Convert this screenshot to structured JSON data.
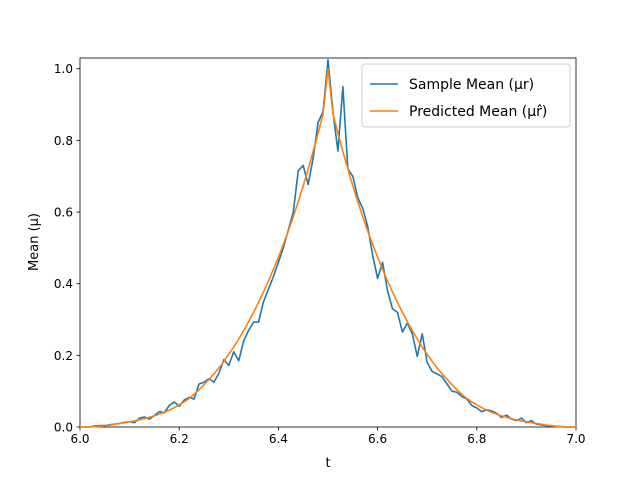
{
  "chart_data": {
    "type": "line",
    "xlabel": "t",
    "ylabel": "Mean (μ)",
    "xlim": [
      6.0,
      7.0
    ],
    "ylim": [
      0.0,
      1.03
    ],
    "xticks": [
      6.0,
      6.2,
      6.4,
      6.6,
      6.8,
      7.0
    ],
    "xtick_labels": [
      "6.0",
      "6.2",
      "6.4",
      "6.6",
      "6.8",
      "7.0"
    ],
    "yticks": [
      0.0,
      0.2,
      0.4,
      0.6,
      0.8,
      1.0
    ],
    "ytick_labels": [
      "0.0",
      "0.2",
      "0.4",
      "0.6",
      "0.8",
      "1.0"
    ],
    "grid": false,
    "legend_position": "top-right",
    "series": [
      {
        "name": "Sample Mean (μr)",
        "color": "#1f77b4",
        "x": [
          6.0,
          6.01,
          6.02,
          6.03,
          6.04,
          6.05,
          6.06,
          6.07,
          6.08,
          6.09,
          6.1,
          6.11,
          6.12,
          6.13,
          6.14,
          6.15,
          6.16,
          6.17,
          6.18,
          6.19,
          6.2,
          6.21,
          6.22,
          6.23,
          6.24,
          6.25,
          6.26,
          6.27,
          6.28,
          6.29,
          6.3,
          6.31,
          6.32,
          6.33,
          6.34,
          6.35,
          6.36,
          6.37,
          6.38,
          6.39,
          6.4,
          6.41,
          6.42,
          6.43,
          6.44,
          6.45,
          6.46,
          6.47,
          6.48,
          6.49,
          6.5,
          6.51,
          6.52,
          6.53,
          6.54,
          6.55,
          6.56,
          6.57,
          6.58,
          6.59,
          6.6,
          6.61,
          6.62,
          6.63,
          6.64,
          6.65,
          6.66,
          6.67,
          6.68,
          6.69,
          6.7,
          6.71,
          6.72,
          6.73,
          6.74,
          6.75,
          6.76,
          6.77,
          6.78,
          6.79,
          6.8,
          6.81,
          6.82,
          6.83,
          6.84,
          6.85,
          6.86,
          6.87,
          6.88,
          6.89,
          6.9,
          6.91,
          6.92,
          6.93,
          6.94,
          6.95,
          6.96,
          6.97,
          6.98,
          6.99,
          7.0
        ],
        "values": [
          0.0,
          0.0,
          0.0,
          0.003,
          0.004,
          0.004,
          0.006,
          0.008,
          0.01,
          0.013,
          0.015,
          0.012,
          0.025,
          0.028,
          0.022,
          0.032,
          0.043,
          0.04,
          0.06,
          0.07,
          0.058,
          0.075,
          0.083,
          0.078,
          0.12,
          0.125,
          0.135,
          0.125,
          0.15,
          0.188,
          0.172,
          0.21,
          0.185,
          0.24,
          0.27,
          0.293,
          0.293,
          0.35,
          0.385,
          0.42,
          0.46,
          0.5,
          0.55,
          0.6,
          0.715,
          0.73,
          0.677,
          0.75,
          0.85,
          0.88,
          1.025,
          0.88,
          0.77,
          0.95,
          0.72,
          0.7,
          0.64,
          0.61,
          0.56,
          0.48,
          0.415,
          0.46,
          0.38,
          0.33,
          0.32,
          0.265,
          0.29,
          0.26,
          0.197,
          0.26,
          0.18,
          0.155,
          0.148,
          0.14,
          0.12,
          0.1,
          0.097,
          0.085,
          0.078,
          0.06,
          0.053,
          0.043,
          0.048,
          0.045,
          0.038,
          0.027,
          0.033,
          0.022,
          0.018,
          0.025,
          0.012,
          0.018,
          0.008,
          0.006,
          0.004,
          0.003,
          0.002,
          0.001,
          0.0,
          0.0,
          0.0
        ]
      },
      {
        "name": "Predicted Mean (μr̂)",
        "color": "#ff7f0e",
        "x": [
          6.0,
          6.01,
          6.02,
          6.03,
          6.04,
          6.05,
          6.06,
          6.07,
          6.08,
          6.09,
          6.1,
          6.11,
          6.12,
          6.13,
          6.14,
          6.15,
          6.16,
          6.17,
          6.18,
          6.19,
          6.2,
          6.21,
          6.22,
          6.23,
          6.24,
          6.25,
          6.26,
          6.27,
          6.28,
          6.29,
          6.3,
          6.31,
          6.32,
          6.33,
          6.34,
          6.35,
          6.36,
          6.37,
          6.38,
          6.39,
          6.4,
          6.41,
          6.42,
          6.43,
          6.44,
          6.45,
          6.46,
          6.47,
          6.48,
          6.49,
          6.5,
          6.51,
          6.52,
          6.53,
          6.54,
          6.55,
          6.56,
          6.57,
          6.58,
          6.59,
          6.6,
          6.61,
          6.62,
          6.63,
          6.64,
          6.65,
          6.66,
          6.67,
          6.68,
          6.69,
          6.7,
          6.71,
          6.72,
          6.73,
          6.74,
          6.75,
          6.76,
          6.77,
          6.78,
          6.79,
          6.8,
          6.81,
          6.82,
          6.83,
          6.84,
          6.85,
          6.86,
          6.87,
          6.88,
          6.89,
          6.9,
          6.91,
          6.92,
          6.93,
          6.94,
          6.95,
          6.96,
          6.97,
          6.98,
          6.99,
          7.0
        ],
        "values": [
          0.0,
          0.0,
          0.0,
          0.001,
          0.002,
          0.004,
          0.005,
          0.008,
          0.01,
          0.012,
          0.015,
          0.017,
          0.02,
          0.023,
          0.027,
          0.031,
          0.036,
          0.041,
          0.047,
          0.054,
          0.062,
          0.07,
          0.08,
          0.091,
          0.104,
          0.118,
          0.133,
          0.148,
          0.165,
          0.183,
          0.203,
          0.223,
          0.246,
          0.269,
          0.294,
          0.32,
          0.348,
          0.377,
          0.408,
          0.44,
          0.474,
          0.51,
          0.547,
          0.587,
          0.629,
          0.673,
          0.72,
          0.769,
          0.82,
          0.874,
          1.0,
          0.874,
          0.82,
          0.769,
          0.72,
          0.673,
          0.629,
          0.587,
          0.547,
          0.51,
          0.474,
          0.44,
          0.408,
          0.377,
          0.348,
          0.32,
          0.294,
          0.269,
          0.246,
          0.223,
          0.203,
          0.183,
          0.165,
          0.148,
          0.133,
          0.118,
          0.104,
          0.091,
          0.08,
          0.07,
          0.062,
          0.054,
          0.047,
          0.041,
          0.036,
          0.031,
          0.027,
          0.023,
          0.02,
          0.017,
          0.015,
          0.012,
          0.01,
          0.008,
          0.005,
          0.004,
          0.002,
          0.001,
          0.0,
          0.0,
          0.0
        ]
      }
    ]
  }
}
